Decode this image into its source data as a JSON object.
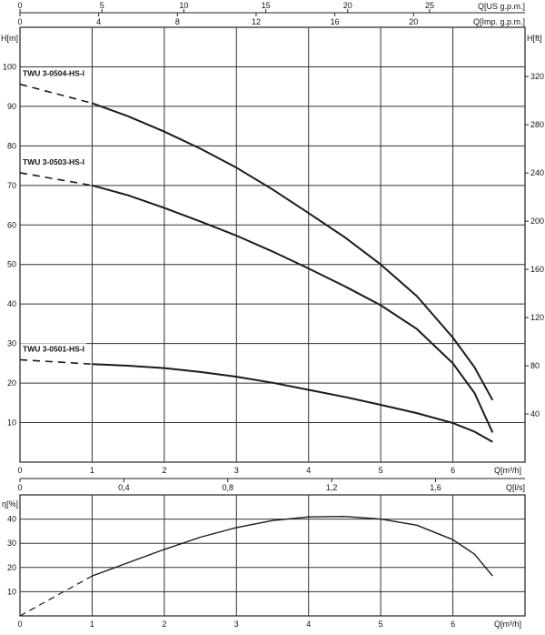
{
  "chart_data": [
    {
      "type": "line",
      "title": "",
      "top_axis_us": {
        "label": "Q[US g.p.m.]",
        "ticks": [
          "0",
          "5",
          "10",
          "15",
          "20",
          "25"
        ],
        "values": [
          0,
          5,
          10,
          15,
          20,
          25
        ]
      },
      "top_axis_imp": {
        "label": "Q[Imp. g.p.m.]",
        "ticks": [
          "0",
          "4",
          "8",
          "12",
          "16",
          "20"
        ],
        "values": [
          0,
          4,
          8,
          12,
          16,
          20
        ]
      },
      "xlabel": "Q[m³/h]",
      "x_ticks": [
        "0",
        "1",
        "2",
        "3",
        "4",
        "5",
        "6"
      ],
      "xlim": [
        0,
        7
      ],
      "ylabel": "H[m]",
      "y_ticks": [
        "10",
        "20",
        "30",
        "40",
        "50",
        "60",
        "70",
        "80",
        "90",
        "100"
      ],
      "ylim": [
        0,
        110
      ],
      "ylabel_right": "H[ft]",
      "y_right_ticks": [
        "40",
        "80",
        "120",
        "160",
        "200",
        "240",
        "280",
        "320"
      ],
      "y_right_values": [
        40,
        80,
        120,
        160,
        200,
        240,
        280,
        320
      ],
      "grid": true,
      "series": [
        {
          "name": "TWU 3-0504-HS-I",
          "x": [
            1,
            1.5,
            2,
            2.5,
            3,
            3.5,
            4,
            4.5,
            5,
            5.5,
            6,
            6.3,
            6.55
          ],
          "y": [
            90.8,
            87.5,
            83.6,
            79.3,
            74.5,
            69,
            63,
            56.9,
            50,
            42,
            31.5,
            24,
            15.7
          ],
          "dashed_start": [
            [
              0,
              95.6
            ],
            [
              1,
              90.8
            ]
          ]
        },
        {
          "name": "TWU 3-0503-HS-I",
          "x": [
            1,
            1.5,
            2,
            2.5,
            3,
            3.5,
            4,
            4.5,
            5,
            5.5,
            6,
            6.3,
            6.55
          ],
          "y": [
            70,
            67.5,
            64.3,
            60.9,
            57.3,
            53.3,
            49,
            44.5,
            39.7,
            33.7,
            25,
            17.5,
            7.5
          ],
          "dashed_start": [
            [
              0,
              73.2
            ],
            [
              1,
              70
            ]
          ]
        },
        {
          "name": "TWU 3-0501-HS-I",
          "x": [
            1,
            1.5,
            2,
            2.5,
            3,
            3.5,
            4,
            4.5,
            5,
            5.5,
            6,
            6.3,
            6.55
          ],
          "y": [
            24.8,
            24.4,
            23.8,
            22.8,
            21.6,
            20.1,
            18.3,
            16.5,
            14.5,
            12.4,
            9.9,
            7.7,
            5.1
          ],
          "dashed_start": [
            [
              0,
              25.9
            ],
            [
              1,
              24.8
            ]
          ]
        }
      ]
    },
    {
      "type": "line",
      "title": "",
      "top_axis": {
        "label": "Q[l/s]",
        "ticks": [
          "0",
          "0,4",
          "0,8",
          "1,2",
          "1,6"
        ],
        "values": [
          0,
          0.4,
          0.8,
          1.2,
          1.6
        ]
      },
      "xlabel": "Q[m³/h]",
      "x_ticks": [
        "0",
        "1",
        "2",
        "3",
        "4",
        "5",
        "6"
      ],
      "xlim": [
        0,
        7
      ],
      "ylabel": "η[%]",
      "y_ticks": [
        "10",
        "20",
        "30",
        "40"
      ],
      "ylim": [
        0,
        50
      ],
      "grid": true,
      "series": [
        {
          "name": "",
          "x": [
            1,
            1.5,
            2,
            2.5,
            3,
            3.5,
            4,
            4.5,
            5,
            5.5,
            6,
            6.3,
            6.55
          ],
          "y": [
            16.5,
            22,
            27.5,
            32.5,
            36.5,
            39.4,
            40.9,
            41.1,
            40,
            37.5,
            31.5,
            25.5,
            16.5
          ],
          "dashed_start": [
            [
              0,
              0
            ],
            [
              1,
              16.5
            ]
          ]
        }
      ]
    }
  ]
}
